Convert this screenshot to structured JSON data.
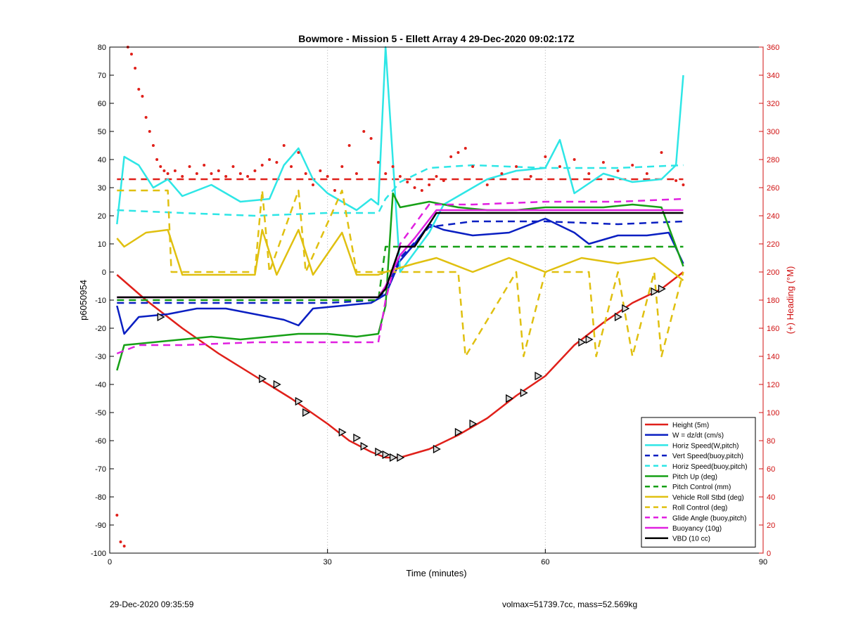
{
  "chart_data": {
    "type": "line",
    "title": "Bowmore - Mission 5 - Ellett Array 4 29-Dec-2020 09:02:17Z",
    "xlabel": "Time (minutes)",
    "ylabel_left": "p6050954",
    "ylabel_right": "(+) Heading (°M)",
    "xlim": [
      0,
      90
    ],
    "ylim_left": [
      -100,
      80
    ],
    "ylim_right": [
      0,
      360
    ],
    "x_ticks": [
      0,
      30,
      60,
      90
    ],
    "y_ticks_left": [
      -100,
      -90,
      -80,
      -70,
      -60,
      -50,
      -40,
      -30,
      -20,
      -10,
      0,
      10,
      20,
      30,
      40,
      50,
      60,
      70,
      80
    ],
    "y_ticks_right": [
      0,
      20,
      40,
      60,
      80,
      100,
      120,
      140,
      160,
      180,
      200,
      220,
      240,
      260,
      280,
      300,
      320,
      340,
      360
    ],
    "grid": "dotted",
    "legend_position": "bottom-right",
    "series": [
      {
        "name": "Height (5m)",
        "color": "#e0201a",
        "style": "solid",
        "x": [
          1,
          5,
          10,
          15,
          20,
          25,
          30,
          33,
          36,
          38,
          40,
          44,
          48,
          52,
          56,
          60,
          64,
          68,
          72,
          76,
          79
        ],
        "y": [
          -1,
          -10,
          -20,
          -29,
          -37,
          -45,
          -54,
          -60,
          -64,
          -66,
          -66,
          -63,
          -58,
          -52,
          -44,
          -37,
          -26,
          -18,
          -11,
          -6,
          0
        ]
      },
      {
        "name": "W = dz/dt (cm/s)",
        "color": "#0a1fc2",
        "style": "solid",
        "x": [
          1,
          2,
          4,
          8,
          12,
          16,
          20,
          24,
          26,
          28,
          32,
          36,
          38,
          40,
          42,
          44,
          46,
          50,
          55,
          60,
          64,
          66,
          70,
          74,
          77,
          79
        ],
        "y": [
          -12,
          -22,
          -16,
          -15,
          -13,
          -13,
          -15,
          -17,
          -19,
          -13,
          -12,
          -11,
          -8,
          4,
          10,
          17,
          15,
          13,
          14,
          19,
          14,
          10,
          13,
          13,
          14,
          3
        ]
      },
      {
        "name": "Horiz Speed(W,pitch)",
        "color": "#2ee6e6",
        "style": "solid",
        "x": [
          1,
          2,
          4,
          6,
          8,
          10,
          14,
          18,
          22,
          24,
          26,
          28,
          30,
          34,
          36,
          37,
          38,
          40,
          42,
          44,
          46,
          48,
          52,
          56,
          60,
          62,
          64,
          68,
          72,
          76,
          78,
          79
        ],
        "y": [
          17,
          41,
          38,
          30,
          33,
          27,
          31,
          25,
          26,
          38,
          44,
          33,
          28,
          22,
          26,
          24,
          80,
          0,
          7,
          14,
          24,
          27,
          33,
          36,
          37,
          47,
          28,
          35,
          32,
          33,
          38,
          70
        ]
      },
      {
        "name": "Vert Speed(buoy,pitch)",
        "color": "#0a1fc2",
        "style": "dashed",
        "x": [
          1,
          10,
          20,
          30,
          37,
          38,
          40,
          44,
          50,
          60,
          70,
          79
        ],
        "y": [
          -11,
          -11,
          -11,
          -11,
          -10,
          -6,
          5,
          16,
          18,
          18,
          17,
          18
        ]
      },
      {
        "name": "Horiz Speed(buoy,pitch)",
        "color": "#2ee6e6",
        "style": "dashed",
        "x": [
          1,
          10,
          20,
          30,
          37,
          38,
          40,
          44,
          50,
          60,
          70,
          79
        ],
        "y": [
          22,
          21,
          20,
          21,
          21,
          26,
          32,
          37,
          38,
          37,
          37,
          38
        ]
      },
      {
        "name": "Pitch Up (deg)",
        "color": "#16a016",
        "style": "solid",
        "x": [
          1,
          2,
          6,
          10,
          14,
          18,
          22,
          26,
          30,
          34,
          37,
          38,
          39,
          40,
          44,
          48,
          52,
          56,
          60,
          64,
          68,
          72,
          76,
          79
        ],
        "y": [
          -35,
          -26,
          -25,
          -24,
          -23,
          -24,
          -23,
          -22,
          -22,
          -23,
          -22,
          -12,
          28,
          23,
          25,
          23,
          22,
          22,
          23,
          23,
          23,
          24,
          23,
          2
        ]
      },
      {
        "name": "Pitch Control (mm)",
        "color": "#16a016",
        "style": "dashed",
        "x": [
          1,
          10,
          20,
          30,
          37,
          38,
          40,
          44,
          50,
          60,
          70,
          79
        ],
        "y": [
          -10,
          -10,
          -10,
          -10,
          -10,
          9,
          9,
          9,
          9,
          9,
          9,
          9
        ]
      },
      {
        "name": "Vehicle Roll Stbd (deg)",
        "color": "#e0c010",
        "style": "solid",
        "x": [
          1,
          2,
          5,
          8,
          10,
          15,
          20,
          21,
          23,
          26,
          28,
          32,
          34,
          37,
          38,
          42,
          45,
          50,
          55,
          60,
          65,
          70,
          75,
          79
        ],
        "y": [
          12,
          9,
          14,
          15,
          -1,
          -1,
          -1,
          15,
          -1,
          15,
          -1,
          14,
          -1,
          -1,
          0,
          3,
          5,
          0,
          5,
          0,
          5,
          3,
          5,
          -3
        ]
      },
      {
        "name": "Roll Control (deg)",
        "color": "#e0c010",
        "style": "dashed",
        "x": [
          1,
          8,
          8.5,
          20,
          21,
          22,
          26,
          27,
          32,
          34,
          37,
          38,
          48,
          49,
          56,
          57,
          60,
          66,
          67,
          70,
          72,
          75,
          76,
          79
        ],
        "y": [
          29,
          29,
          0,
          0,
          29,
          0,
          29,
          0,
          29,
          0,
          0,
          0,
          0,
          -30,
          0,
          -30,
          0,
          0,
          -30,
          0,
          -30,
          0,
          -30,
          0
        ]
      },
      {
        "name": "Glide Angle (buoy,pitch)",
        "color": "#e020e0",
        "style": "dashed",
        "x": [
          1,
          4,
          10,
          20,
          30,
          37,
          38,
          40,
          44,
          50,
          60,
          70,
          79
        ],
        "y": [
          -29,
          -26,
          -26,
          -25,
          -25,
          -25,
          -10,
          10,
          24,
          24,
          25,
          25,
          26
        ]
      },
      {
        "name": "Buoyancy (10g)",
        "color": "#e020e0",
        "style": "solid",
        "x": [
          1,
          10,
          20,
          30,
          37,
          38,
          40,
          42,
          45,
          50,
          60,
          70,
          79
        ],
        "y": [
          -9,
          -9,
          -9,
          -9,
          -9,
          -5,
          6,
          12,
          22,
          22,
          22,
          22,
          22
        ]
      },
      {
        "name": "VBD (10 cc)",
        "color": "#000000",
        "style": "solid",
        "x": [
          1,
          10,
          20,
          30,
          37,
          38,
          40,
          42,
          44,
          45,
          50,
          60,
          70,
          79
        ],
        "y": [
          -9,
          -9,
          -9,
          -9,
          -9,
          -6,
          9,
          9,
          17,
          21,
          21,
          21,
          21,
          21
        ]
      }
    ],
    "heading_mean": {
      "axis": "right",
      "value": 266,
      "color": "#e0201a",
      "style": "dashed"
    },
    "heading_points": {
      "axis": "right",
      "color": "#e0201a",
      "x": [
        1,
        1.5,
        2,
        2.5,
        3,
        3.5,
        4,
        4.5,
        5,
        5.5,
        6,
        6.5,
        7,
        7.5,
        8,
        9,
        10,
        11,
        12,
        13,
        14,
        15,
        16,
        17,
        18,
        19,
        20,
        21,
        22,
        23,
        24,
        25,
        26,
        27,
        28,
        29,
        30,
        31,
        32,
        33,
        34,
        35,
        36,
        37,
        38,
        39,
        40,
        41,
        42,
        43,
        44,
        45,
        46,
        47,
        48,
        49,
        50,
        52,
        54,
        56,
        58,
        60,
        62,
        64,
        66,
        68,
        70,
        72,
        74,
        76,
        78,
        79
      ],
      "y": [
        27,
        8,
        5,
        360,
        355,
        345,
        330,
        325,
        310,
        300,
        290,
        280,
        275,
        272,
        270,
        272,
        268,
        275,
        270,
        276,
        270,
        272,
        268,
        275,
        270,
        268,
        272,
        276,
        280,
        278,
        290,
        275,
        285,
        270,
        262,
        272,
        268,
        258,
        275,
        290,
        270,
        300,
        295,
        278,
        270,
        275,
        268,
        264,
        260,
        258,
        262,
        268,
        265,
        282,
        285,
        288,
        275,
        262,
        270,
        275,
        268,
        282,
        275,
        280,
        270,
        278,
        272,
        276,
        270,
        285,
        265,
        262
      ]
    },
    "markers": {
      "x": [
        7,
        21,
        23,
        26,
        27,
        32,
        34,
        35,
        37,
        38,
        39,
        40,
        45,
        48,
        50,
        55,
        57,
        59,
        65,
        66,
        70,
        71,
        75,
        76
      ],
      "y": [
        -16,
        -38,
        -40,
        -46,
        -50,
        -57,
        -59,
        -62,
        -64,
        -65,
        -66,
        -66,
        -63,
        -57,
        -54,
        -45,
        -43,
        -37,
        -25,
        -24,
        -16,
        -13,
        -7,
        -6
      ]
    }
  },
  "footer": {
    "left": "29-Dec-2020 09:35:59",
    "right": "volmax=51739.7cc, mass=52.569kg"
  }
}
